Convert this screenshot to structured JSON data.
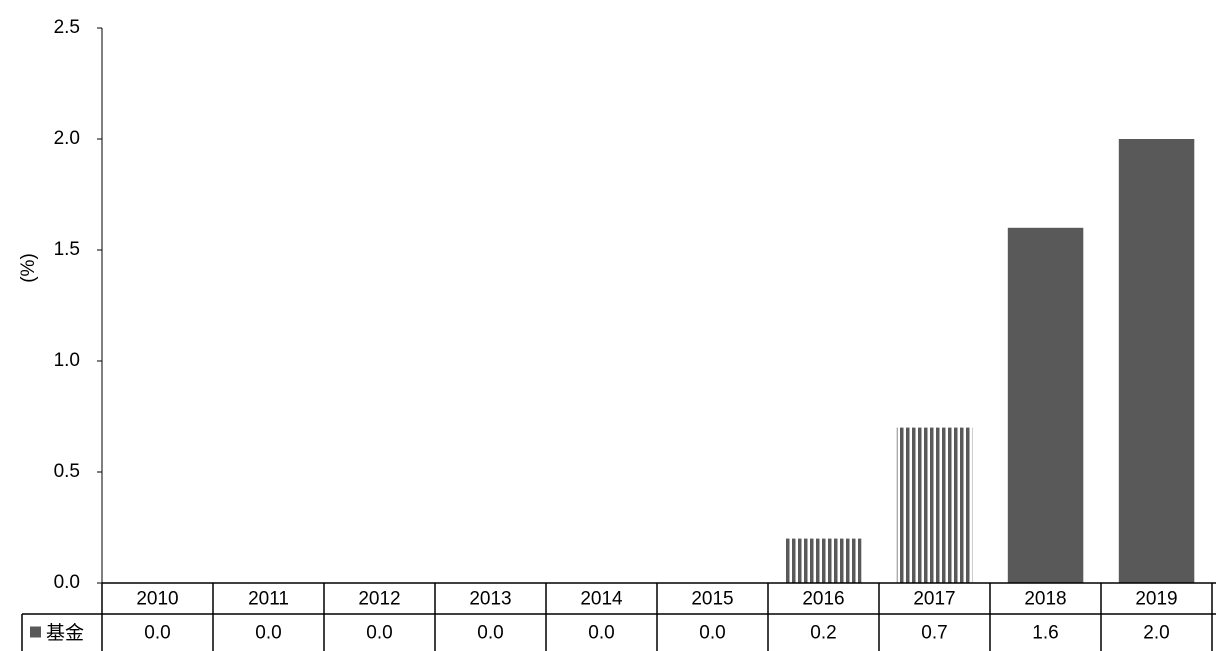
{
  "chart_data": {
    "type": "bar",
    "ylabel": "(%)",
    "ylim": [
      0,
      2.5
    ],
    "yticks": [
      "0.0",
      "0.5",
      "1.0",
      "1.5",
      "2.0",
      "2.5"
    ],
    "categories": [
      "2010",
      "2011",
      "2012",
      "2013",
      "2014",
      "2015",
      "2016",
      "2017",
      "2018",
      "2019"
    ],
    "series": [
      {
        "name": "基金",
        "values": [
          0.0,
          0.0,
          0.0,
          0.0,
          0.0,
          0.0,
          0.2,
          0.7,
          1.6,
          2.0
        ],
        "value_labels": [
          "0.0",
          "0.0",
          "0.0",
          "0.0",
          "0.0",
          "0.0",
          "0.2",
          "0.7",
          "1.6",
          "2.0"
        ],
        "fill_styles": [
          "solid",
          "solid",
          "solid",
          "solid",
          "solid",
          "solid",
          "striped",
          "striped",
          "solid",
          "solid"
        ],
        "color": "#595959"
      }
    ],
    "data_table": true,
    "legend": "data-table-row-header"
  }
}
